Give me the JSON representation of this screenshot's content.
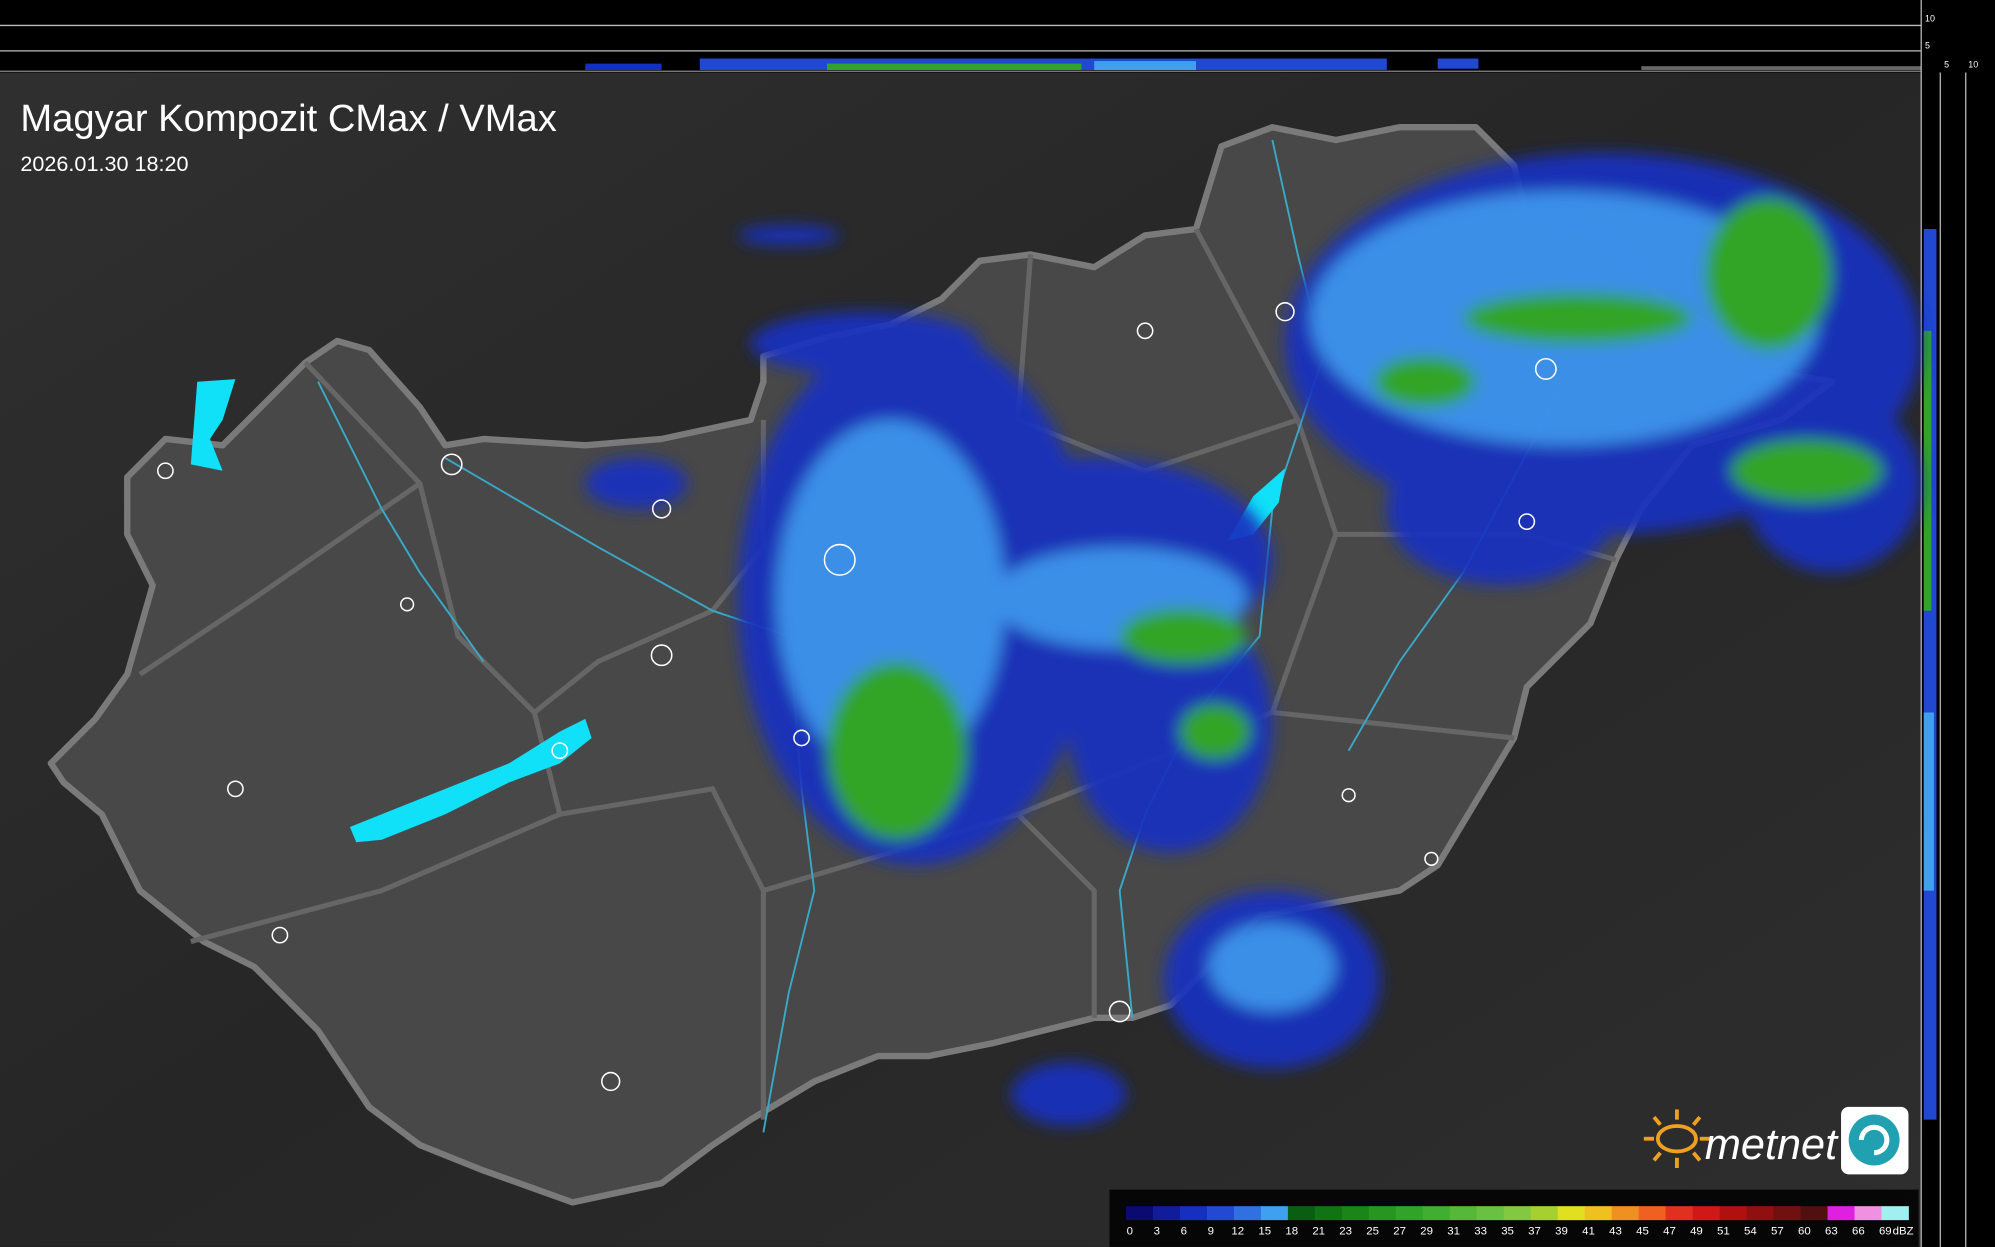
{
  "header": {
    "title": "Magyar Kompozit CMax / VMax",
    "timestamp": "2026.01.30 18:20"
  },
  "profile_axes": {
    "top": [
      10,
      5
    ],
    "right": [
      5,
      10
    ]
  },
  "logo": {
    "text": "metnet"
  },
  "legend": {
    "unit": "dBZ",
    "stops": [
      {
        "value": 0,
        "color": "#0a0a70"
      },
      {
        "value": 3,
        "color": "#101c9a"
      },
      {
        "value": 6,
        "color": "#1530c0"
      },
      {
        "value": 9,
        "color": "#2248d4"
      },
      {
        "value": 12,
        "color": "#3070e0"
      },
      {
        "value": 15,
        "color": "#40a0f0"
      },
      {
        "value": 18,
        "color": "#0a5e12"
      },
      {
        "value": 21,
        "color": "#107414"
      },
      {
        "value": 23,
        "color": "#1a8618"
      },
      {
        "value": 25,
        "color": "#269620"
      },
      {
        "value": 27,
        "color": "#30a428"
      },
      {
        "value": 29,
        "color": "#40ae30"
      },
      {
        "value": 31,
        "color": "#55b838"
      },
      {
        "value": 33,
        "color": "#6ac040"
      },
      {
        "value": 35,
        "color": "#82c840"
      },
      {
        "value": 37,
        "color": "#a6d030"
      },
      {
        "value": 39,
        "color": "#e0e020"
      },
      {
        "value": 41,
        "color": "#f0c020"
      },
      {
        "value": 43,
        "color": "#f09020"
      },
      {
        "value": 45,
        "color": "#f06020"
      },
      {
        "value": 47,
        "color": "#e03020"
      },
      {
        "value": 49,
        "color": "#d01818"
      },
      {
        "value": 51,
        "color": "#b01010"
      },
      {
        "value": 54,
        "color": "#901010"
      },
      {
        "value": 57,
        "color": "#701010"
      },
      {
        "value": 60,
        "color": "#501010"
      },
      {
        "value": 63,
        "color": "#e020e0"
      },
      {
        "value": 66,
        "color": "#f090e0"
      },
      {
        "value": 69,
        "color": "#a0f0f0"
      }
    ]
  }
}
